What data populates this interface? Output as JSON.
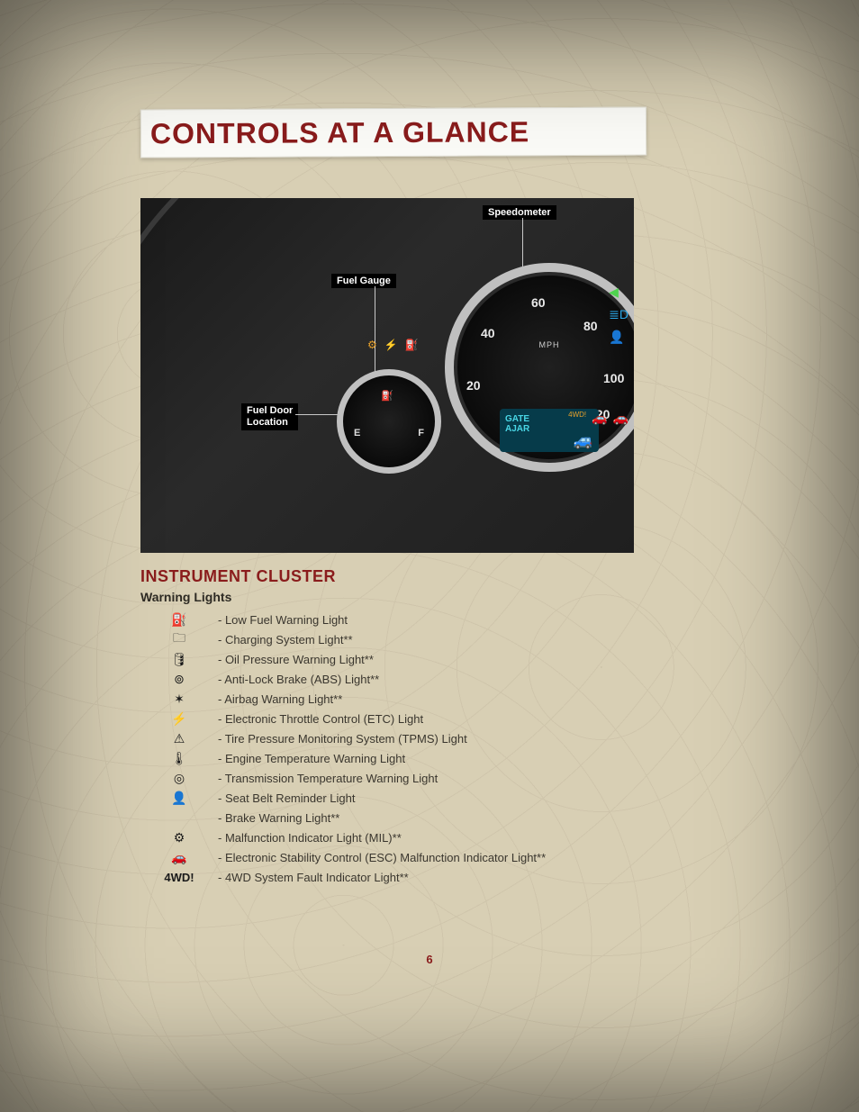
{
  "colors": {
    "accent": "#8a1c1c",
    "page_bg": "#d8cfb4",
    "text": "#3a362e",
    "title_bg": "#fbfbf7"
  },
  "typography": {
    "title_fontsize": 32,
    "h2_fontsize": 18,
    "h3_fontsize": 14,
    "body_fontsize": 13
  },
  "page_number": "6",
  "title": "CONTROLS AT A GLANCE",
  "section_heading": "INSTRUMENT CLUSTER",
  "subsection_heading": "Warning Lights",
  "dashboard": {
    "labels": {
      "speedometer": "Speedometer",
      "fuel_gauge": "Fuel Gauge",
      "fuel_door": "Fuel Door\nLocation"
    },
    "speedometer": {
      "unit": "MPH",
      "ticks": [
        "20",
        "40",
        "60",
        "80",
        "100",
        "120"
      ],
      "lcd_text": "GATE\nAJAR"
    },
    "fuel": {
      "empty": "E",
      "full": "F"
    }
  },
  "warnings": [
    {
      "icon": "fuel-pump-icon",
      "glyph": "⛽",
      "label": "- Low Fuel Warning Light"
    },
    {
      "icon": "battery-icon",
      "glyph": "🗀",
      "label": "- Charging System Light**"
    },
    {
      "icon": "oil-can-icon",
      "glyph": "🛢",
      "label": "- Oil Pressure Warning Light**"
    },
    {
      "icon": "abs-icon",
      "glyph": "⊚",
      "label": "- Anti-Lock Brake (ABS) Light**"
    },
    {
      "icon": "airbag-icon",
      "glyph": "✶",
      "label": "- Airbag Warning Light**"
    },
    {
      "icon": "etc-icon",
      "glyph": "⚡",
      "label": "- Electronic Throttle Control (ETC) Light"
    },
    {
      "icon": "tpms-icon",
      "glyph": "⚠",
      "label": "- Tire Pressure Monitoring System (TPMS) Light"
    },
    {
      "icon": "temp-icon",
      "glyph": "🌡",
      "label": "- Engine Temperature Warning Light"
    },
    {
      "icon": "trans-temp-icon",
      "glyph": "◎",
      "label": "- Transmission Temperature Warning Light"
    },
    {
      "icon": "seatbelt-icon",
      "glyph": "👤",
      "label": "- Seat Belt Reminder Light"
    },
    {
      "icon": "brake-icon",
      "glyph": "",
      "label": "- Brake Warning Light**"
    },
    {
      "icon": "mil-icon",
      "glyph": "⚙",
      "label": "- Malfunction Indicator Light (MIL)**"
    },
    {
      "icon": "esc-icon",
      "glyph": "🚗",
      "label": "- Electronic Stability Control (ESC) Malfunction Indicator Light**"
    },
    {
      "icon": "fwd-icon",
      "glyph": "4WD!",
      "label": "- 4WD System Fault Indicator Light**"
    }
  ]
}
